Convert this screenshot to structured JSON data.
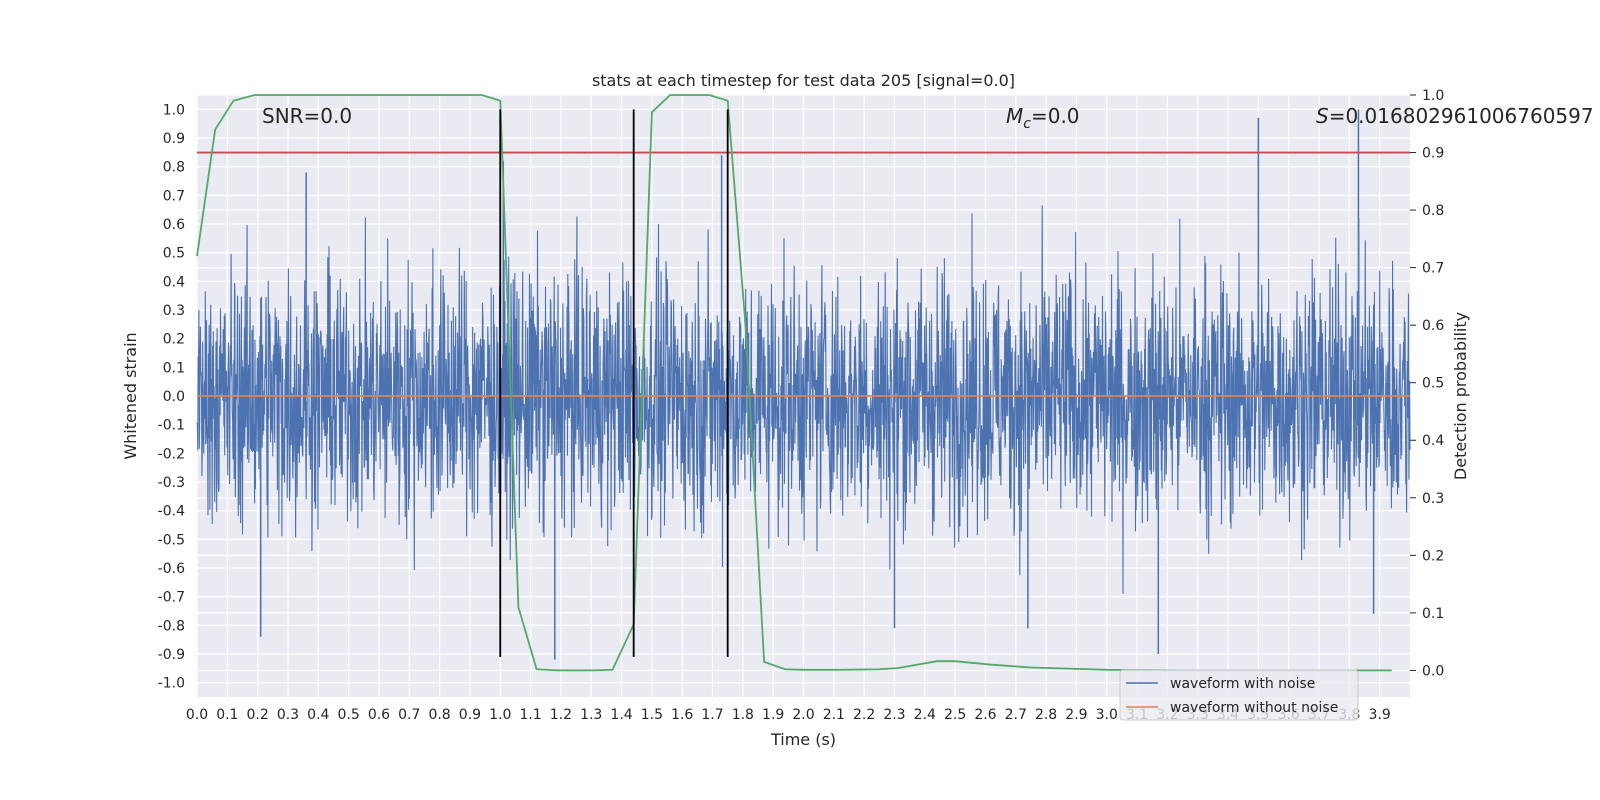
{
  "chart_data": {
    "type": "line",
    "title": "stats at each timestep for test data 205 [signal=0.0]",
    "xlabel": "Time (s)",
    "ylabel": "Whitened strain",
    "y2label": "Detection probability",
    "xlim": [
      0.0,
      4.0
    ],
    "ylim": [
      -1.05,
      1.05
    ],
    "y2lim": [
      -0.0462,
      1.0
    ],
    "xticks": [
      "0.0",
      "0.1",
      "0.2",
      "0.3",
      "0.4",
      "0.5",
      "0.6",
      "0.7",
      "0.8",
      "0.9",
      "1.0",
      "1.1",
      "1.2",
      "1.3",
      "1.4",
      "1.5",
      "1.6",
      "1.7",
      "1.8",
      "1.9",
      "2.0",
      "2.1",
      "2.2",
      "2.3",
      "2.4",
      "2.5",
      "2.6",
      "2.7",
      "2.8",
      "2.9",
      "3.0",
      "3.1",
      "3.2",
      "3.3",
      "3.4",
      "3.5",
      "3.6",
      "3.7",
      "3.8",
      "3.9"
    ],
    "yticks": [
      "1.0",
      "0.9",
      "0.8",
      "0.7",
      "0.6",
      "0.5",
      "0.4",
      "0.3",
      "0.2",
      "0.1",
      "0.0",
      "-0.1",
      "-0.2",
      "-0.3",
      "-0.4",
      "-0.5",
      "-0.6",
      "-0.7",
      "-0.8",
      "-0.9",
      "-1.0"
    ],
    "y2ticks": [
      "1.0",
      "0.9",
      "0.8",
      "0.7",
      "0.6",
      "0.5",
      "0.4",
      "0.3",
      "0.2",
      "0.1",
      "0.0"
    ],
    "annotations": {
      "snr": "SNR=0.0",
      "mc": "=0.0",
      "mc_symbol": "M",
      "mc_sub": "c",
      "s": "=0.016802961006760597",
      "s_symbol": "S"
    },
    "threshold": {
      "axis": "right",
      "value": 0.9,
      "color": "#c44e52"
    },
    "noise_amplitude": {
      "positive_peak": 1.0,
      "negative_peak": -0.9,
      "typical": 0.35
    },
    "vertical_lines": [
      1.0,
      1.44,
      1.75
    ],
    "vertical_line_range": [
      -0.91,
      1.0
    ],
    "series": [
      {
        "name": "waveform with noise",
        "color": "#4c72b0",
        "axis": "left",
        "style": "dense-noise",
        "spikes": [
          {
            "x": 0.36,
            "y": 0.78
          },
          {
            "x": 1.01,
            "y": 0.82
          },
          {
            "x": 1.73,
            "y": 0.84
          },
          {
            "x": 3.5,
            "y": 0.97
          },
          {
            "x": 3.83,
            "y": 1.0
          },
          {
            "x": 0.21,
            "y": -0.84
          },
          {
            "x": 1.18,
            "y": -0.92
          },
          {
            "x": 3.17,
            "y": -0.9
          },
          {
            "x": 2.3,
            "y": -0.81
          },
          {
            "x": 2.74,
            "y": -0.81
          },
          {
            "x": 3.88,
            "y": -0.76
          }
        ]
      },
      {
        "name": "waveform without noise",
        "color": "#dd8452",
        "axis": "left",
        "x": [
          0.0,
          4.0
        ],
        "y": [
          0.0,
          0.0
        ]
      },
      {
        "name": "detection probability",
        "color": "#55a868",
        "axis": "right",
        "x": [
          0.0,
          0.06,
          0.12,
          0.19,
          0.25,
          0.31,
          0.37,
          0.5,
          0.62,
          0.75,
          0.87,
          0.94,
          1.0,
          1.06,
          1.12,
          1.19,
          1.25,
          1.31,
          1.37,
          1.44,
          1.5,
          1.56,
          1.62,
          1.69,
          1.75,
          1.81,
          1.87,
          1.94,
          2.0,
          2.12,
          2.25,
          2.31,
          2.44,
          2.5,
          2.62,
          2.75,
          3.0,
          3.25,
          3.5,
          3.75,
          3.94
        ],
        "y": [
          0.72,
          0.94,
          0.99,
          1.0,
          1.0,
          1.0,
          1.0,
          1.0,
          1.0,
          1.0,
          1.0,
          1.0,
          0.99,
          0.11,
          0.002,
          0.0,
          0.0,
          0.0,
          0.001,
          0.08,
          0.97,
          1.0,
          1.0,
          1.0,
          0.99,
          0.59,
          0.015,
          0.002,
          0.001,
          0.001,
          0.002,
          0.004,
          0.016,
          0.016,
          0.01,
          0.005,
          0.001,
          0.0,
          0.0,
          0.0,
          0.0
        ]
      }
    ],
    "legend": {
      "placement": "bottom-right",
      "entries": [
        "waveform with noise",
        "waveform without noise"
      ]
    }
  }
}
